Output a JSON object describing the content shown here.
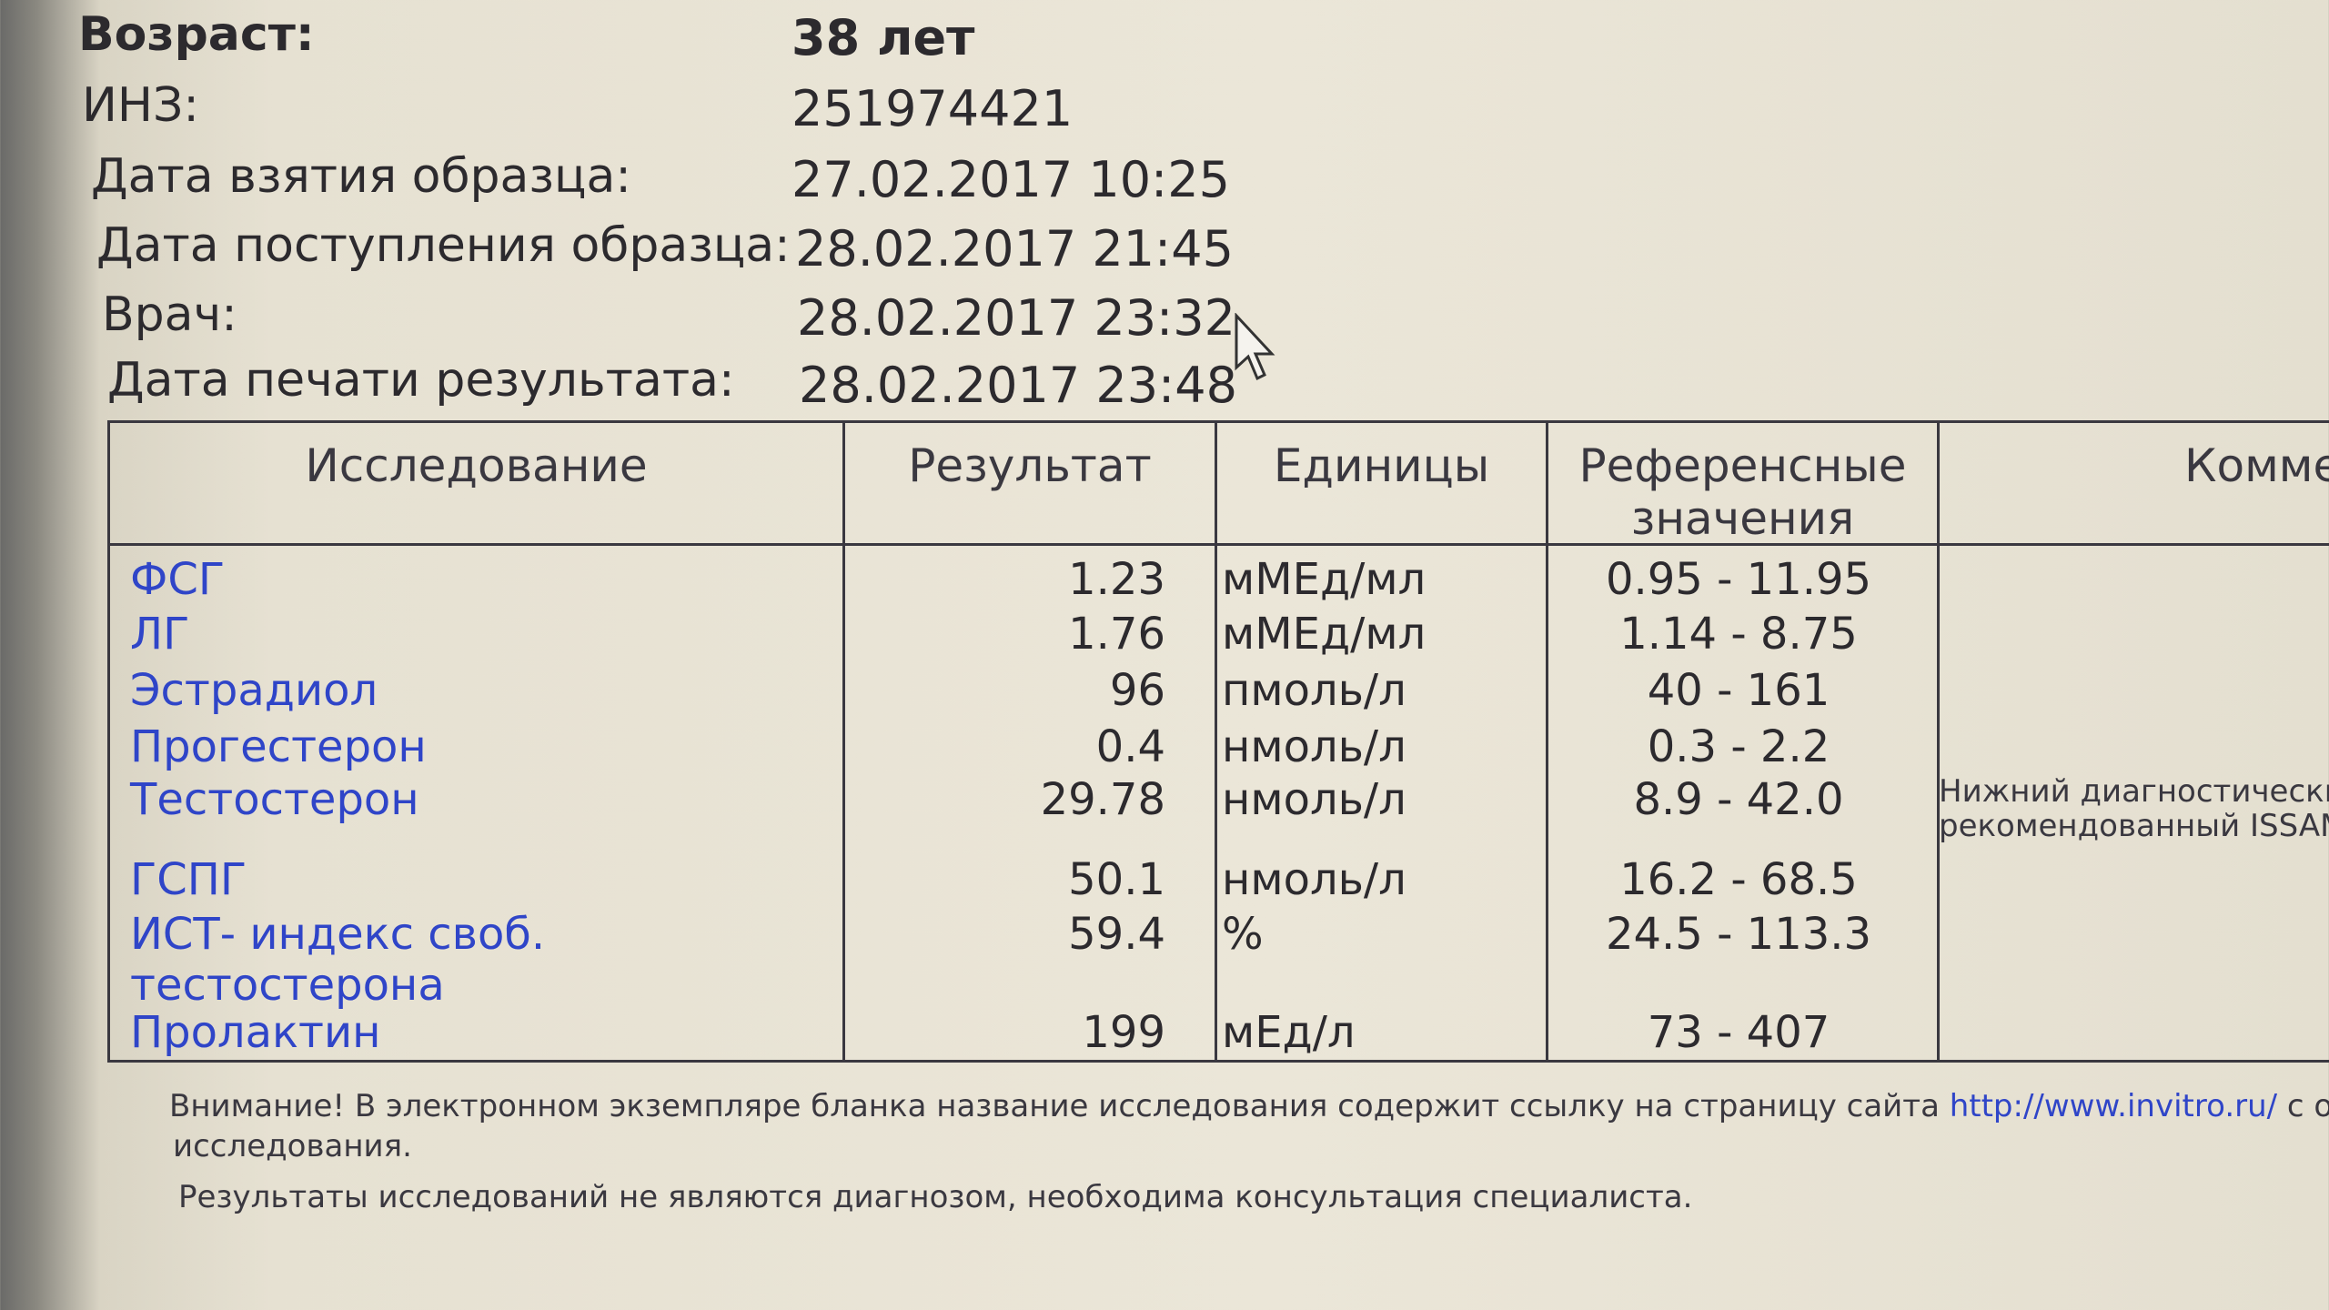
{
  "patient": {
    "fields": [
      {
        "label": "Возраст:",
        "value": "38 лет"
      },
      {
        "label": "ИНЗ:",
        "value": "251974421"
      },
      {
        "label": "Дата взятия образца:",
        "value": "27.02.2017 10:25"
      },
      {
        "label": "Дата поступления образца:",
        "value": "28.02.2017 21:45"
      },
      {
        "label": "Врач:",
        "value": "28.02.2017 23:32"
      },
      {
        "label": "Дата печати результата:",
        "value": "28.02.2017 23:48"
      }
    ]
  },
  "cursor_icon": "mouse-pointer-arrow",
  "table": {
    "headers": [
      "Исследование",
      "Результат",
      "Единицы",
      "Референсные значения",
      "Коммен"
    ],
    "rows": [
      {
        "test": "ФСГ",
        "result": "1.23",
        "units": "мМЕд/мл",
        "reference": "0.95 - 11.95"
      },
      {
        "test": "ЛГ",
        "result": "1.76",
        "units": "мМЕд/мл",
        "reference": "1.14 - 8.75"
      },
      {
        "test": "Эстрадиол",
        "result": "96",
        "units": "пмоль/л",
        "reference": "40 - 161"
      },
      {
        "test": "Прогестерон",
        "result": "0.4",
        "units": "нмоль/л",
        "reference": "0.3 - 2.2"
      },
      {
        "test": "Тестостерон",
        "result": "29.78",
        "units": "нмоль/л",
        "reference": "8.9 - 42.0",
        "comment_line1": "Нижний диагностически",
        "comment_line2": "рекомендованный ISSAM"
      },
      {
        "test": "ГСПГ",
        "result": "50.1",
        "units": "нмоль/л",
        "reference": "16.2 - 68.5"
      },
      {
        "test": "ИСТ- индекс своб.",
        "test_line2": "тестостерона",
        "result": "59.4",
        "units": "%",
        "reference": "24.5 - 113.3"
      },
      {
        "test": "Пролактин",
        "result": "199",
        "units": "мЕд/л",
        "reference": "73 - 407"
      }
    ]
  },
  "footer": {
    "notice": "Внимание! В электронном экземпляре бланка название исследования содержит ссылку на страницу сайта",
    "link": "http://www.invitro.ru/",
    "notice_tail": "с ог",
    "notice_line2": "исследования.",
    "disclaimer": "Результаты исследований не являются диагнозом, необходима консультация специалиста."
  }
}
